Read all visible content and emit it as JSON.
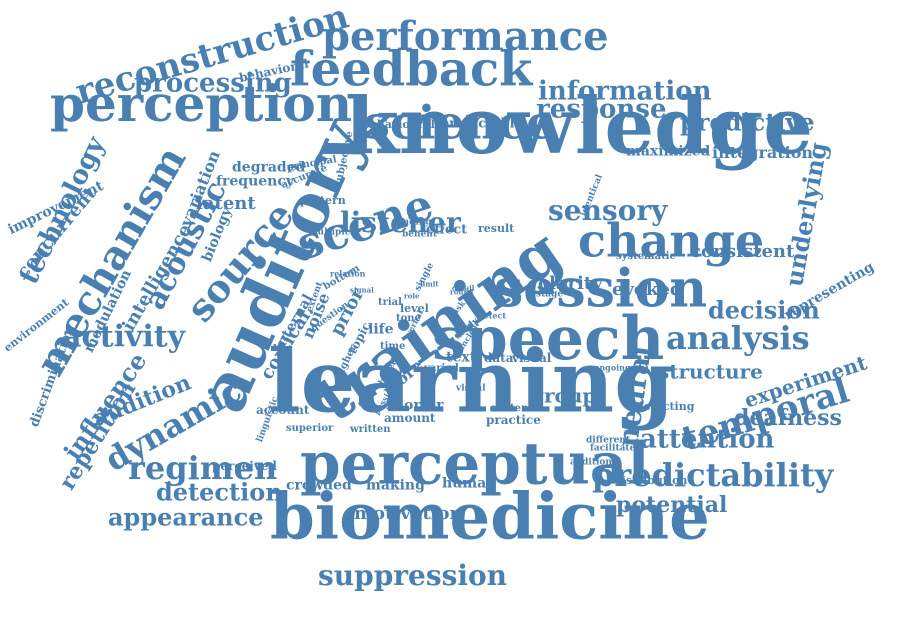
{
  "cloud": {
    "color": "#4a7fb1",
    "background": "#ffffff",
    "words": [
      "knowledge",
      "learning",
      "training",
      "biomedicine",
      "auditory",
      "perceptual",
      "speech",
      "session",
      "feedback",
      "perception",
      "science",
      "scene",
      "change",
      "performance",
      "reconstruction",
      "mechanism",
      "predictability",
      "temporal",
      "source",
      "analysis",
      "dynamic",
      "regimen",
      "listener",
      "sensory",
      "acoustic",
      "information",
      "activity",
      "neural",
      "response",
      "decision",
      "processing",
      "detection",
      "suppression",
      "appearance",
      "technology",
      "attention",
      "underlying",
      "predictive",
      "potential",
      "deafness",
      "experiment",
      "influence",
      "repetition",
      "audition",
      "structure",
      "group",
      "motivation",
      "consistent",
      "clarity",
      "evoked",
      "integration",
      "latent",
      "degraded",
      "frequency",
      "maximized",
      "improvement",
      "concurrent",
      "intelligence",
      "variation",
      "biology",
      "modulation",
      "environment",
      "discrimination",
      "representing",
      "behavioral",
      "behavioural",
      "predictable",
      "subjective",
      "principal",
      "accurate",
      "pattern",
      "multiple",
      "benefit",
      "finding",
      "effect",
      "result",
      "identical",
      "systematic",
      "cortical",
      "internal",
      "noise",
      "prior",
      "life",
      "text",
      "data",
      "visual",
      "topic",
      "time",
      "level",
      "tone",
      "single",
      "trial",
      "study",
      "varied",
      "more",
      "shorter",
      "amount",
      "written",
      "content",
      "practice",
      "account",
      "superior",
      "linguistic",
      "perceived",
      "crowded",
      "making",
      "human",
      "different",
      "facilitate",
      "additional",
      "distribution",
      "detecting",
      "ongoing",
      "question",
      "higher",
      "based",
      "passive",
      "bottom",
      "relation",
      "signal",
      "stage",
      "detect",
      "unclear",
      "drive",
      "task",
      "verbal",
      "round",
      "role",
      "limit",
      "detail",
      "extent",
      "visual"
    ]
  }
}
